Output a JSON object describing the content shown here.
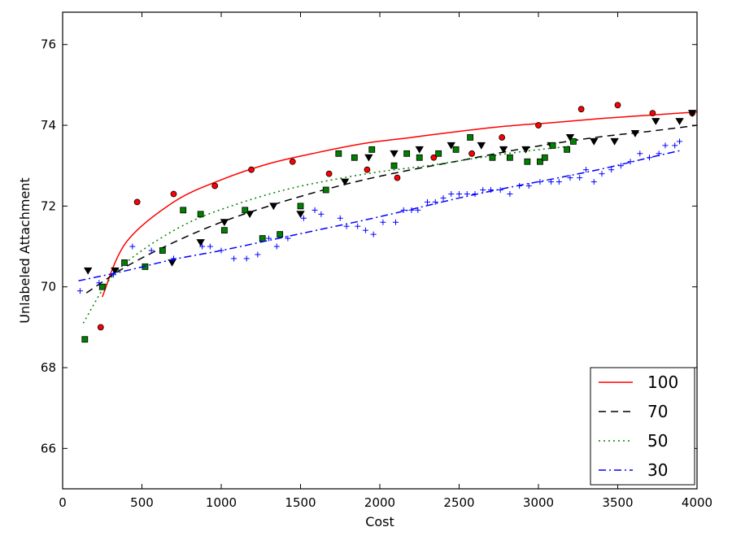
{
  "chart_data": {
    "type": "scatter",
    "xlabel": "Cost",
    "ylabel": "Unlabeled Attachment",
    "xlim": [
      0,
      4000
    ],
    "ylim": [
      65,
      76.8
    ],
    "xticks": [
      0,
      500,
      1000,
      1500,
      2000,
      2500,
      3000,
      3500,
      4000
    ],
    "yticks": [
      66,
      68,
      70,
      72,
      74,
      76
    ],
    "grid": false,
    "legend_position": "bottom-right",
    "series": [
      {
        "name": "100",
        "color": "#ff0000",
        "line_style": "solid",
        "marker": "circle",
        "fit_range": [
          250,
          4000
        ],
        "fit_y": [
          69.75,
          71.1,
          72.1,
          72.65,
          73.05,
          73.32,
          73.55,
          73.7,
          73.85,
          73.98,
          74.07,
          74.17,
          74.25,
          74.33
        ],
        "fit_x": [
          250,
          400,
          700,
          1000,
          1300,
          1600,
          1900,
          2200,
          2500,
          2800,
          3100,
          3400,
          3700,
          4000
        ],
        "points_x": [
          240,
          470,
          700,
          960,
          1190,
          1450,
          1680,
          1920,
          2110,
          2340,
          2580,
          2770,
          3000,
          3270,
          3500,
          3720,
          3970
        ],
        "points_y": [
          69.0,
          72.1,
          72.3,
          72.5,
          72.9,
          73.1,
          72.8,
          72.9,
          72.7,
          73.2,
          73.3,
          73.7,
          74.0,
          74.4,
          74.5,
          74.3,
          74.3
        ]
      },
      {
        "name": "70",
        "color": "#000000",
        "line_style": "dashed",
        "marker": "triangle-down",
        "fit_x": [
          150,
          400,
          700,
          1000,
          1300,
          1600,
          1900,
          2200,
          2500,
          2800,
          3100,
          3400,
          3700,
          4000
        ],
        "fit_y": [
          69.85,
          70.5,
          71.1,
          71.6,
          72.0,
          72.35,
          72.65,
          72.9,
          73.12,
          73.35,
          73.55,
          73.72,
          73.85,
          74.0
        ],
        "points_x": [
          160,
          330,
          690,
          870,
          1020,
          1180,
          1330,
          1500,
          1780,
          1930,
          2090,
          2250,
          2450,
          2640,
          2780,
          2920,
          3080,
          3200,
          3350,
          3480,
          3610,
          3740,
          3890,
          3970
        ],
        "points_y": [
          70.4,
          70.4,
          70.6,
          71.1,
          71.6,
          71.8,
          72.0,
          71.8,
          72.6,
          73.2,
          73.3,
          73.4,
          73.5,
          73.5,
          73.4,
          73.4,
          73.5,
          73.7,
          73.6,
          73.6,
          73.8,
          74.1,
          74.1,
          74.3
        ]
      },
      {
        "name": "50",
        "color": "#008000",
        "line_style": "dotted",
        "marker": "square",
        "fit_x": [
          130,
          300,
          500,
          800,
          1100,
          1400,
          1700,
          2000,
          2300,
          2600,
          2900,
          3200
        ],
        "fit_y": [
          69.1,
          70.2,
          70.9,
          71.6,
          72.05,
          72.4,
          72.65,
          72.85,
          73.0,
          73.18,
          73.35,
          73.48
        ],
        "points_x": [
          140,
          250,
          390,
          520,
          630,
          760,
          870,
          1020,
          1150,
          1260,
          1370,
          1500,
          1660,
          1740,
          1840,
          1950,
          2090,
          2170,
          2250,
          2370,
          2480,
          2570,
          2710,
          2820,
          2930,
          3010,
          3040,
          3090,
          3180,
          3220
        ],
        "points_y": [
          68.7,
          70.0,
          70.6,
          70.5,
          70.9,
          71.9,
          71.8,
          71.4,
          71.9,
          71.2,
          71.3,
          72.0,
          72.4,
          73.3,
          73.2,
          73.4,
          73.0,
          73.3,
          73.2,
          73.3,
          73.4,
          73.7,
          73.2,
          73.2,
          73.1,
          73.1,
          73.2,
          73.5,
          73.4,
          73.6
        ]
      },
      {
        "name": "30",
        "color": "#0000ff",
        "line_style": "dashdot",
        "marker": "plus",
        "fit_x": [
          100,
          400,
          700,
          1000,
          1300,
          1600,
          1900,
          2200,
          2500,
          2800,
          3100,
          3400,
          3700,
          3900
        ],
        "fit_y": [
          70.15,
          70.4,
          70.68,
          70.9,
          71.15,
          71.4,
          71.65,
          71.92,
          72.2,
          72.45,
          72.68,
          72.92,
          73.2,
          73.38
        ],
        "points_x": [
          110,
          230,
          320,
          440,
          560,
          700,
          880,
          930,
          1000,
          1080,
          1160,
          1230,
          1300,
          1350,
          1420,
          1520,
          1590,
          1630,
          1750,
          1790,
          1860,
          1910,
          1960,
          2020,
          2100,
          2150,
          2200,
          2240,
          2300,
          2350,
          2400,
          2450,
          2500,
          2550,
          2600,
          2650,
          2700,
          2760,
          2820,
          2880,
          2940,
          3010,
          3080,
          3130,
          3200,
          3260,
          3300,
          3350,
          3400,
          3460,
          3520,
          3580,
          3640,
          3700,
          3760,
          3800,
          3860,
          3890
        ],
        "points_y": [
          69.9,
          70.1,
          70.3,
          71.0,
          70.9,
          70.7,
          71.0,
          71.0,
          70.9,
          70.7,
          70.7,
          70.8,
          71.2,
          71.0,
          71.2,
          71.7,
          71.9,
          71.8,
          71.7,
          71.5,
          71.5,
          71.4,
          71.3,
          71.6,
          71.6,
          71.9,
          71.9,
          71.9,
          72.1,
          72.1,
          72.2,
          72.3,
          72.3,
          72.3,
          72.3,
          72.4,
          72.4,
          72.4,
          72.3,
          72.5,
          72.5,
          72.6,
          72.6,
          72.6,
          72.7,
          72.7,
          72.9,
          72.6,
          72.8,
          72.9,
          73.0,
          73.1,
          73.3,
          73.2,
          73.3,
          73.5,
          73.5,
          73.6
        ]
      }
    ]
  }
}
